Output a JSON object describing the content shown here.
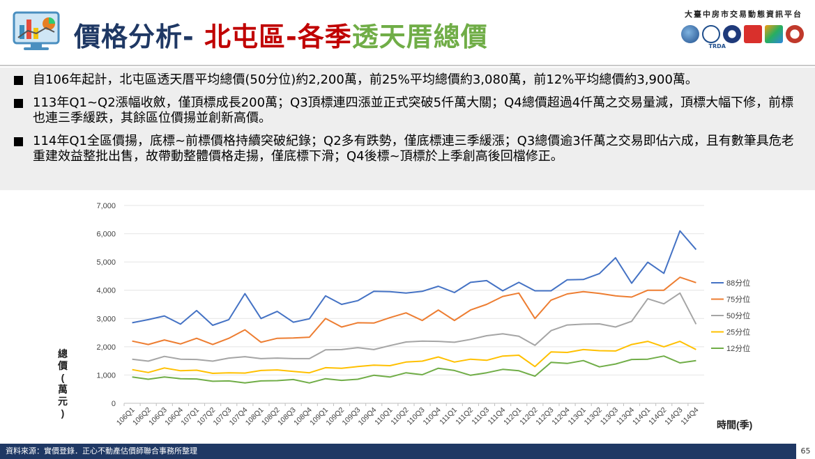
{
  "header": {
    "title_part1": "價格分析- ",
    "title_part2": "北屯區-各季",
    "title_part3": "透天厝總價",
    "platform": "大臺中房市交易動態資訊平台",
    "org_logo_text": "TRDA"
  },
  "bullets": [
    "自106年起計，北屯區透天厝平均總價(50分位)約2,200萬，前25%平均總價約3,080萬，前12%平均總價約3,900萬。",
    "113年Q1~Q2漲幅收斂，僅頂標成長200萬；Q3頂標連四漲並正式突破5仟萬大關；Q4總價超過4仟萬之交易量減，頂標大幅下修，前標也連三季緩跌，其餘區位價揚並創新高價。",
    "114年Q1全區價揚，底標~前標價格持續突破紀錄；Q2多有跌勢，僅底標連三季緩漲；Q3總價逾3仟萬之交易即佔六成，且有數筆具危老重建效益整批出售，故帶動整體價格走揚，僅底標下滑；Q4後標~頂標於上季創高後回檔修正。"
  ],
  "footer": {
    "source": "資料來源：實價登錄．正心不動產估價師聯合事務所整理",
    "page": "65"
  },
  "chart_data": {
    "type": "line",
    "title": "",
    "xlabel": "時間(季)",
    "ylabel": "總價(萬元)",
    "ylim": [
      0,
      7000
    ],
    "yticks": [
      0,
      1000,
      2000,
      3000,
      4000,
      5000,
      6000,
      7000
    ],
    "ytick_labels": [
      "0",
      "1,000",
      "2,000",
      "3,000",
      "4,000",
      "5,000",
      "6,000",
      "7,000"
    ],
    "legend_position": "right",
    "categories": [
      "106Q1",
      "106Q2",
      "106Q3",
      "106Q4",
      "107Q1",
      "107Q2",
      "107Q3",
      "107Q4",
      "108Q1",
      "108Q2",
      "108Q3",
      "108Q4",
      "109Q1",
      "109Q2",
      "109Q3",
      "109Q4",
      "110Q1",
      "110Q2",
      "110Q3",
      "110Q4",
      "111Q1",
      "111Q2",
      "111Q3",
      "111Q4",
      "112Q1",
      "112Q2",
      "112Q3",
      "112Q4",
      "113Q1",
      "113Q2",
      "113Q3",
      "113Q4",
      "114Q1",
      "114Q2",
      "114Q3",
      "114Q4"
    ],
    "series": [
      {
        "name": "88分位",
        "color": "#4472c4",
        "values": [
          2850,
          2960,
          3090,
          2800,
          3280,
          2760,
          2960,
          3880,
          3000,
          3250,
          2870,
          2990,
          3800,
          3500,
          3630,
          3960,
          3950,
          3900,
          3960,
          4140,
          3920,
          4280,
          4340,
          3980,
          4280,
          3980,
          3980,
          4370,
          4380,
          4590,
          5150,
          4250,
          4990,
          4600,
          6100,
          5440
        ]
      },
      {
        "name": "75分位",
        "color": "#ed7d31",
        "values": [
          2200,
          2080,
          2240,
          2100,
          2300,
          2080,
          2300,
          2600,
          2160,
          2300,
          2310,
          2340,
          3000,
          2700,
          2850,
          2840,
          3030,
          3200,
          2930,
          3300,
          2930,
          3300,
          3500,
          3780,
          3900,
          3000,
          3650,
          3870,
          3950,
          3890,
          3800,
          3760,
          4000,
          4000,
          4460,
          4270
        ]
      },
      {
        "name": "50分位",
        "color": "#a5a5a5",
        "values": [
          1560,
          1490,
          1660,
          1560,
          1550,
          1490,
          1600,
          1650,
          1580,
          1600,
          1580,
          1580,
          1890,
          1900,
          1970,
          1900,
          2040,
          2170,
          2200,
          2190,
          2160,
          2260,
          2390,
          2460,
          2370,
          2050,
          2570,
          2770,
          2800,
          2810,
          2700,
          2900,
          3700,
          3520,
          3900,
          2800
        ]
      },
      {
        "name": "25分位",
        "color": "#ffc000",
        "values": [
          1190,
          1090,
          1250,
          1150,
          1170,
          1060,
          1080,
          1070,
          1160,
          1180,
          1130,
          1080,
          1260,
          1240,
          1300,
          1350,
          1330,
          1460,
          1490,
          1640,
          1460,
          1560,
          1520,
          1670,
          1700,
          1300,
          1820,
          1800,
          1900,
          1860,
          1850,
          2080,
          2190,
          2000,
          2190,
          1900
        ]
      },
      {
        "name": "12分位",
        "color": "#70ad47",
        "values": [
          930,
          850,
          930,
          870,
          860,
          780,
          790,
          720,
          790,
          800,
          840,
          720,
          870,
          810,
          850,
          990,
          930,
          1080,
          1010,
          1240,
          1160,
          990,
          1080,
          1200,
          1150,
          960,
          1450,
          1410,
          1510,
          1290,
          1390,
          1550,
          1560,
          1670,
          1430,
          1510
        ]
      }
    ]
  }
}
